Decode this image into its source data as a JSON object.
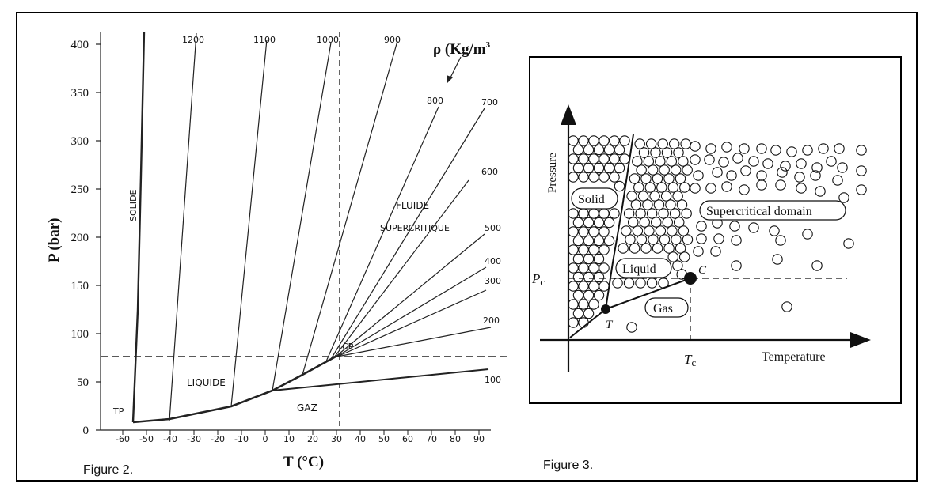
{
  "figure2": {
    "caption": "Figure 2.",
    "x_axis_title": "T  (°C)",
    "y_axis_title": "P (bar)",
    "x_tick_labels": [
      "-60",
      "-50",
      "-40",
      "-30",
      "-20",
      "-10",
      "0",
      "10",
      "20",
      "30",
      "40",
      "50",
      "60",
      "70",
      "80",
      "90"
    ],
    "y_tick_labels": [
      "0",
      "50",
      "100",
      "150",
      "200",
      "250",
      "300",
      "350",
      "400"
    ],
    "density_unit": "ρ (Kg/m",
    "density_unit_sup": "3",
    "density_labels": [
      "1200",
      "1100",
      "1000",
      "900",
      "800",
      "700",
      "600",
      "500",
      "400",
      "300",
      "200",
      "100"
    ],
    "region_labels": {
      "solid": "SOLIDE",
      "liquid": "LIQUIDE",
      "gas": "GAZ",
      "fluid": "FLUIDE",
      "supercritical": "SUPERCRITIQUE",
      "triple_point": "TP",
      "critical_point": "CP"
    }
  },
  "figure3": {
    "caption": "Figure 3.",
    "y_axis_title": "Pressure",
    "x_axis_title": "Temperature",
    "pc_label": "P",
    "pc_sub": "c",
    "tc_label": "T",
    "tc_sub": "c",
    "triple_label": "T",
    "critical_label": "C",
    "region_labels": {
      "solid": "Solid",
      "liquid": "Liquid",
      "gas": "Gas",
      "supercritical": "Supercritical domain"
    }
  }
}
